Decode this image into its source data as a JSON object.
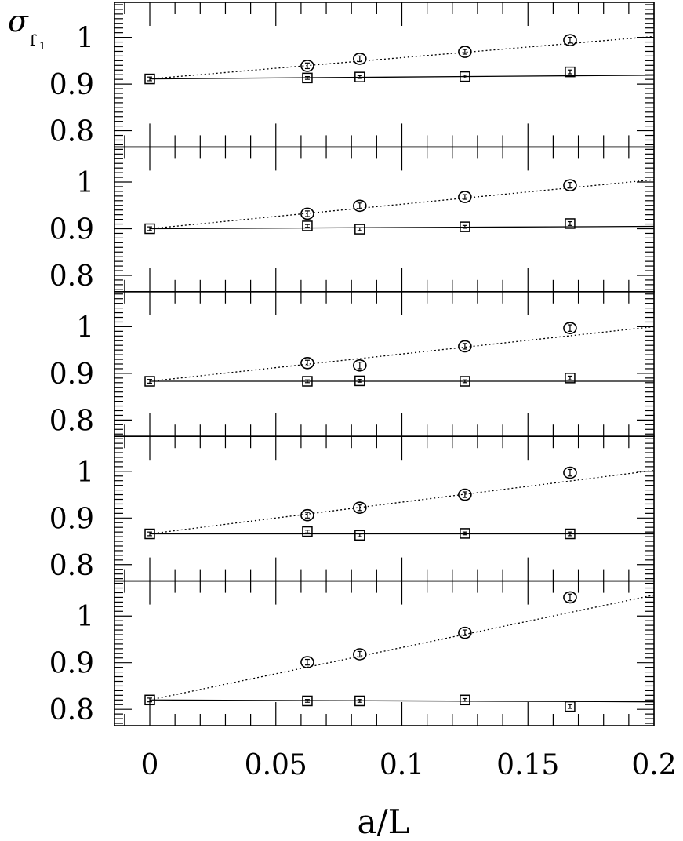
{
  "chart_data": {
    "type": "scatter",
    "xlabel": "a/L",
    "ylabel": "σ",
    "ylabel_sub1": "f",
    "ylabel_sub2": "1",
    "xlim": [
      -0.014,
      0.2
    ],
    "xticks": [
      0,
      0.05,
      0.1,
      0.15,
      0.2
    ],
    "xtick_labels": [
      "0",
      "0.05",
      "0.1",
      "0.15",
      "0.2"
    ],
    "panel_ylim": [
      0.765,
      1.075
    ],
    "yticks": [
      0.8,
      0.9,
      1.0
    ],
    "ytick_labels": [
      "0.8",
      "0.9",
      "1"
    ],
    "grid": false,
    "panels": [
      {
        "series": [
          {
            "marker": "circle",
            "line": "dotted",
            "x": [
              0.0625,
              0.0833,
              0.125,
              0.1667
            ],
            "y": [
              0.939,
              0.954,
              0.969,
              0.994
            ],
            "err": [
              0.006,
              0.006,
              0.005,
              0.006
            ]
          },
          {
            "marker": "square",
            "line": "solid",
            "x": [
              0,
              0.0625,
              0.0833,
              0.125,
              0.1667
            ],
            "y": [
              0.911,
              0.913,
              0.915,
              0.916,
              0.926
            ],
            "err": [
              0.004,
              0.003,
              0.003,
              0.003,
              0.004
            ]
          }
        ],
        "fits": [
          {
            "style": "dotted",
            "y0": 0.911,
            "slope": 0.455
          },
          {
            "style": "solid",
            "y0": 0.911,
            "slope": 0.04
          }
        ]
      },
      {
        "series": [
          {
            "marker": "circle",
            "line": "dotted",
            "x": [
              0.0625,
              0.0833,
              0.125,
              0.1667
            ],
            "y": [
              0.932,
              0.949,
              0.968,
              0.993
            ],
            "err": [
              0.006,
              0.006,
              0.005,
              0.006
            ]
          },
          {
            "marker": "square",
            "line": "solid",
            "x": [
              0,
              0.0625,
              0.0833,
              0.125,
              0.1667
            ],
            "y": [
              0.9,
              0.906,
              0.899,
              0.904,
              0.911
            ],
            "err": [
              0.004,
              0.003,
              0.003,
              0.003,
              0.004
            ]
          }
        ],
        "fits": [
          {
            "style": "dotted",
            "y0": 0.9,
            "slope": 0.525
          },
          {
            "style": "solid",
            "y0": 0.9,
            "slope": 0.025
          }
        ]
      },
      {
        "series": [
          {
            "marker": "circle",
            "line": "dotted",
            "x": [
              0.0625,
              0.0833,
              0.125,
              0.1667
            ],
            "y": [
              0.922,
              0.917,
              0.958,
              0.997
            ],
            "err": [
              0.006,
              0.007,
              0.006,
              0.007
            ]
          },
          {
            "marker": "square",
            "line": "solid",
            "x": [
              0,
              0.0625,
              0.0833,
              0.125,
              0.1667
            ],
            "y": [
              0.883,
              0.883,
              0.884,
              0.883,
              0.89
            ],
            "err": [
              0.004,
              0.003,
              0.003,
              0.003,
              0.004
            ]
          }
        ],
        "fits": [
          {
            "style": "dotted",
            "y0": 0.883,
            "slope": 0.585
          },
          {
            "style": "solid",
            "y0": 0.883,
            "slope": 0.0
          }
        ]
      },
      {
        "series": [
          {
            "marker": "circle",
            "line": "dotted",
            "x": [
              0.0625,
              0.0833,
              0.125,
              0.1667
            ],
            "y": [
              0.906,
              0.922,
              0.95,
              0.997
            ],
            "err": [
              0.006,
              0.006,
              0.006,
              0.007
            ]
          },
          {
            "marker": "square",
            "line": "solid",
            "x": [
              0,
              0.0625,
              0.0833,
              0.125,
              0.1667
            ],
            "y": [
              0.866,
              0.871,
              0.863,
              0.867,
              0.866
            ],
            "err": [
              0.004,
              0.003,
              0.003,
              0.003,
              0.004
            ]
          }
        ],
        "fits": [
          {
            "style": "dotted",
            "y0": 0.866,
            "slope": 0.68
          },
          {
            "style": "solid",
            "y0": 0.866,
            "slope": 0.0
          }
        ]
      },
      {
        "series": [
          {
            "marker": "circle",
            "line": "dotted",
            "x": [
              0.0625,
              0.0833,
              0.125,
              0.1667
            ],
            "y": [
              0.901,
              0.918,
              0.964,
              1.04
            ],
            "err": [
              0.006,
              0.006,
              0.006,
              0.007
            ]
          },
          {
            "marker": "square",
            "line": "solid",
            "x": [
              0,
              0.0625,
              0.0833,
              0.125,
              0.1667
            ],
            "y": [
              0.82,
              0.818,
              0.818,
              0.82,
              0.806
            ],
            "err": [
              0.004,
              0.003,
              0.003,
              0.003,
              0.004
            ]
          }
        ],
        "fits": [
          {
            "style": "dotted",
            "y0": 0.82,
            "slope": 1.125
          },
          {
            "style": "solid",
            "y0": 0.82,
            "slope": -0.02
          }
        ]
      }
    ]
  }
}
